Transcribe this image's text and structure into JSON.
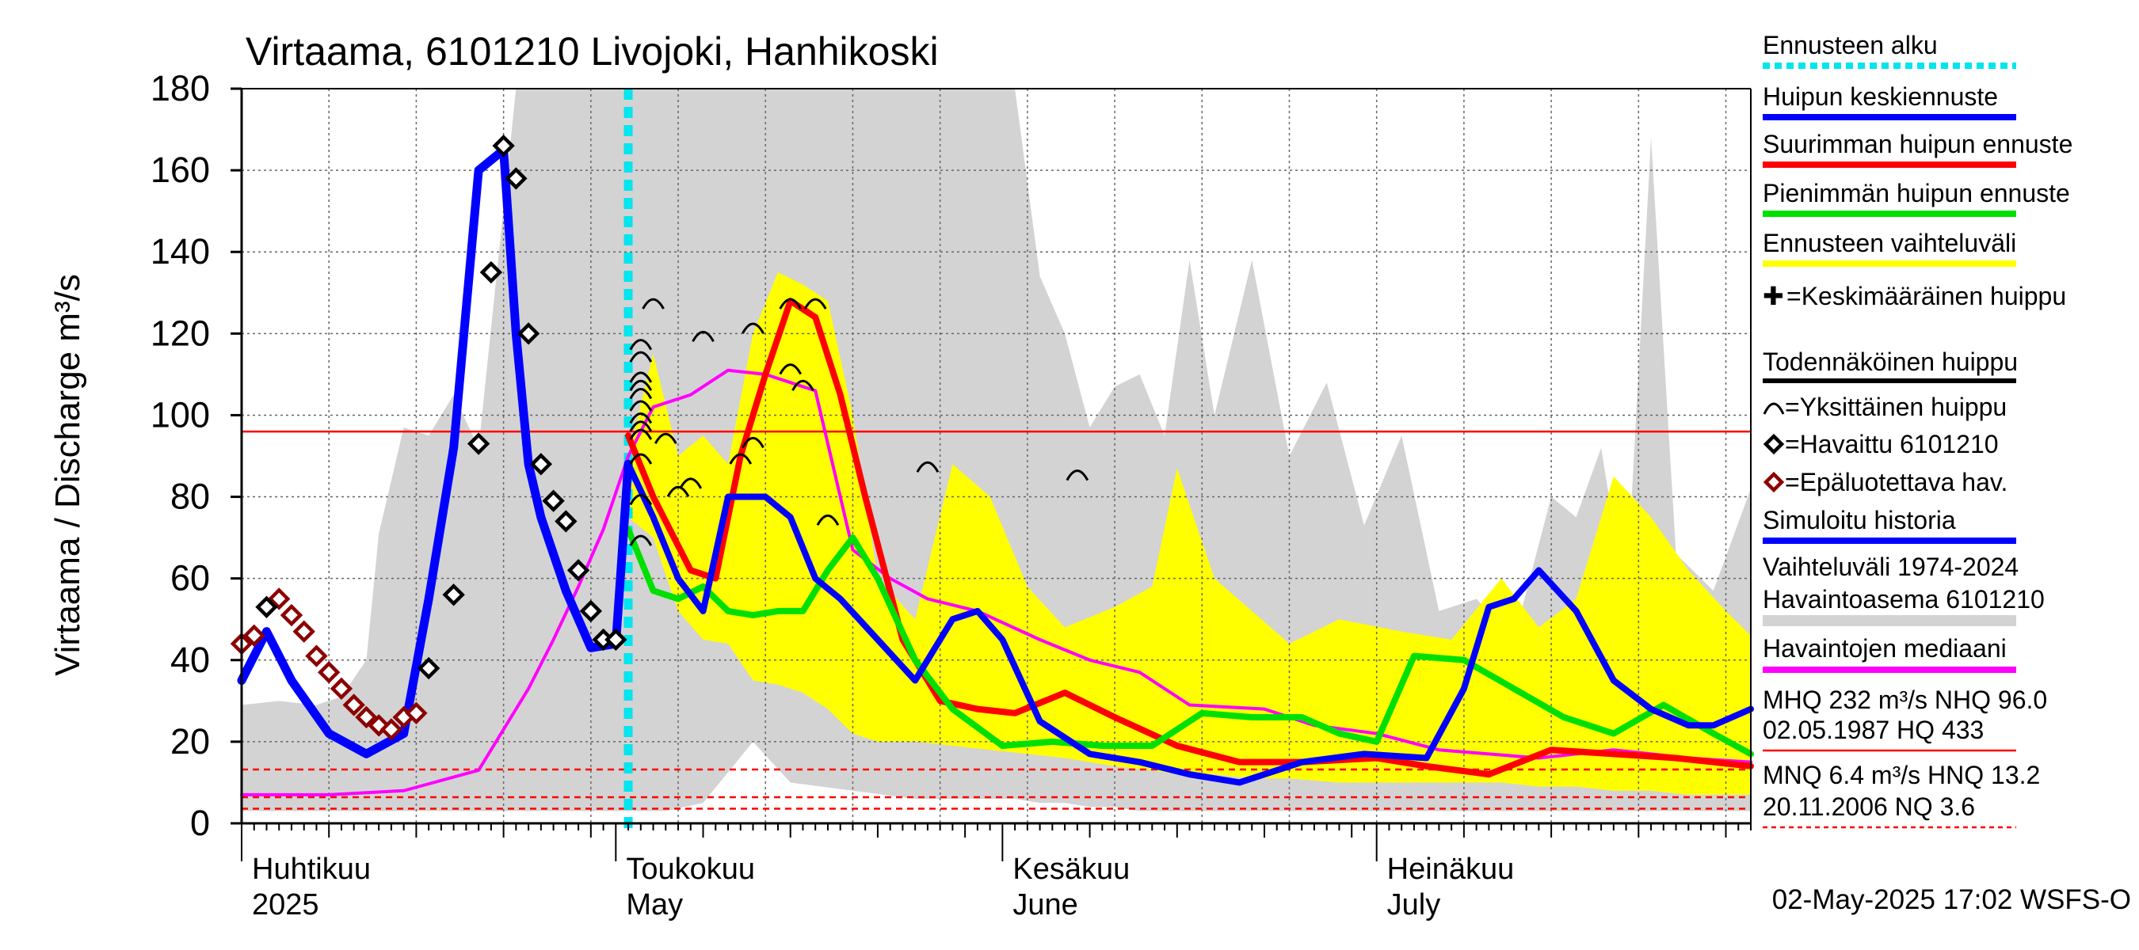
{
  "chart_data": {
    "type": "line",
    "title": "Virtaama, 6101210 Livojoki, Hanhikoski",
    "ylabel": "Virtaama / Discharge   m³/s",
    "ylim": [
      0,
      180
    ],
    "yticks": [
      0,
      20,
      40,
      60,
      80,
      100,
      120,
      140,
      160,
      180
    ],
    "xlim": [
      "2025-04-01",
      "2025-07-31"
    ],
    "x_month_labels": [
      {
        "date": "2025-04-01",
        "fi": "Huhtikuu",
        "en": "2025"
      },
      {
        "date": "2025-05-01",
        "fi": "Toukokuu",
        "en": "May"
      },
      {
        "date": "2025-06-01",
        "fi": "Kesäkuu",
        "en": "June"
      },
      {
        "date": "2025-07-01",
        "fi": "Heinäkuu",
        "en": "July"
      }
    ],
    "grid": true,
    "forecast_start": "2025-05-02",
    "reference_lines": {
      "red_solid": 96.0,
      "red_dashed": [
        13.2,
        6.4,
        3.6
      ]
    },
    "footer": "02-May-2025 17:02 WSFS-O",
    "legend": [
      {
        "label": "Ennusteen alku",
        "color": "#00e5ee",
        "style": "dotted"
      },
      {
        "label": "Huipun keskiennuste",
        "color": "#0000ff",
        "style": "line"
      },
      {
        "label": "Suurimman huipun ennuste",
        "color": "#ff0000",
        "style": "line"
      },
      {
        "label": "Pienimmän huipun ennuste",
        "color": "#00e000",
        "style": "line"
      },
      {
        "label": "Ennusteen vaihteluväli",
        "color": "#ffff00",
        "style": "line"
      },
      {
        "label": "✚=Keskimääräinen huippu",
        "color": "#000000",
        "style": "none"
      },
      {
        "label": "Todennäköinen huippu",
        "color": "#000000",
        "style": "line"
      },
      {
        "label": "⌒=Yksittäinen huippu",
        "color": "#000000",
        "style": "none"
      },
      {
        "label": "◇=Havaittu 6101210",
        "color": "#000000",
        "style": "none"
      },
      {
        "label": "◇=Epäluotettava hav.",
        "color": "#8b0000",
        "style": "none"
      },
      {
        "label": "Simuloitu historia",
        "color": "#0000ff",
        "style": "line"
      },
      {
        "label": "Vaihteluväli 1974-2024",
        "color": "#d3d3d3",
        "style": "none"
      },
      {
        "label": " Havaintoasema 6101210",
        "color": "#d3d3d3",
        "style": "band"
      },
      {
        "label": "Havaintojen mediaani",
        "color": "#ff00ff",
        "style": "line"
      },
      {
        "label": "MHQ  232 m³/s NHQ 96.0",
        "color": "#000000",
        "style": "none"
      },
      {
        "label": "02.05.1987 HQ  433",
        "color": "#ff0000",
        "style": "line"
      },
      {
        "label": "MNQ  6.4 m³/s HNQ 13.2",
        "color": "#000000",
        "style": "none"
      },
      {
        "label": "20.11.2006 NQ  3.6",
        "color": "#ff0000",
        "style": "dashed"
      }
    ],
    "series": [
      {
        "name": "Vaihteluväli 1974-2024",
        "kind": "band",
        "color": "#d3d3d3",
        "x": [
          "2025-04-01",
          "2025-04-04",
          "2025-04-07",
          "2025-04-09",
          "2025-04-11",
          "2025-04-12",
          "2025-04-14",
          "2025-04-16",
          "2025-04-18",
          "2025-04-20",
          "2025-04-23",
          "2025-04-25",
          "2025-04-28",
          "2025-05-01",
          "2025-05-03",
          "2025-05-05",
          "2025-05-08",
          "2025-05-12",
          "2025-05-15",
          "2025-05-20",
          "2025-05-25",
          "2025-05-30",
          "2025-06-02",
          "2025-06-04",
          "2025-06-06",
          "2025-06-08",
          "2025-06-10",
          "2025-06-12",
          "2025-06-14",
          "2025-06-16",
          "2025-06-18",
          "2025-06-21",
          "2025-06-24",
          "2025-06-27",
          "2025-06-30",
          "2025-07-03",
          "2025-07-06",
          "2025-07-09",
          "2025-07-12",
          "2025-07-15",
          "2025-07-17",
          "2025-07-19",
          "2025-07-21",
          "2025-07-23",
          "2025-07-25",
          "2025-07-28",
          "2025-07-31"
        ],
        "upper": [
          29,
          30,
          29,
          31,
          40,
          71,
          97,
          95,
          105,
          92,
          180,
          180,
          180,
          180,
          180,
          180,
          180,
          180,
          180,
          180,
          180,
          180,
          180,
          134,
          120,
          97,
          107,
          110,
          95,
          138,
          100,
          138,
          90,
          108,
          73,
          95,
          52,
          55,
          45,
          80,
          75,
          92,
          54,
          168,
          66,
          57,
          82
        ],
        "lower": [
          3,
          3,
          3,
          3,
          3,
          3,
          3,
          3,
          3,
          3,
          3,
          3,
          3,
          3,
          3,
          3,
          5,
          20,
          10,
          8,
          6,
          6,
          6,
          5,
          5,
          4,
          4,
          3,
          3,
          3,
          3,
          3,
          3,
          3,
          3,
          3,
          3,
          3,
          3,
          3,
          3,
          3,
          3,
          3,
          3,
          3,
          3
        ]
      },
      {
        "name": "Ennusteen vaihteluväli",
        "kind": "band",
        "color": "#ffff00",
        "x": [
          "2025-05-02",
          "2025-05-04",
          "2025-05-06",
          "2025-05-08",
          "2025-05-10",
          "2025-05-12",
          "2025-05-14",
          "2025-05-16",
          "2025-05-18",
          "2025-05-20",
          "2025-05-22",
          "2025-05-25",
          "2025-05-28",
          "2025-05-31",
          "2025-06-03",
          "2025-06-06",
          "2025-06-10",
          "2025-06-13",
          "2025-06-15",
          "2025-06-18",
          "2025-06-21",
          "2025-06-24",
          "2025-06-28",
          "2025-07-03",
          "2025-07-07",
          "2025-07-11",
          "2025-07-14",
          "2025-07-17",
          "2025-07-20",
          "2025-07-23",
          "2025-07-26",
          "2025-07-29",
          "2025-07-31"
        ],
        "upper": [
          90,
          115,
          90,
          95,
          88,
          120,
          135,
          132,
          128,
          100,
          60,
          50,
          88,
          80,
          58,
          48,
          53,
          58,
          87,
          60,
          52,
          44,
          50,
          47,
          45,
          60,
          48,
          55,
          85,
          75,
          62,
          52,
          46
        ],
        "lower": [
          75,
          70,
          52,
          45,
          44,
          35,
          34,
          32,
          28,
          22,
          20,
          20,
          19,
          18,
          17,
          16,
          14,
          13,
          12,
          12,
          11,
          11,
          10,
          10,
          10,
          10,
          9,
          9,
          8,
          8,
          7,
          7,
          7
        ]
      },
      {
        "name": "Havaintojen mediaani",
        "kind": "line",
        "color": "#ff00ff",
        "x": [
          "2025-04-01",
          "2025-04-08",
          "2025-04-14",
          "2025-04-20",
          "2025-04-24",
          "2025-04-26",
          "2025-04-28",
          "2025-04-30",
          "2025-05-02",
          "2025-05-04",
          "2025-05-07",
          "2025-05-10",
          "2025-05-13",
          "2025-05-17",
          "2025-05-20",
          "2025-05-23",
          "2025-05-26",
          "2025-05-30",
          "2025-06-04",
          "2025-06-08",
          "2025-06-12",
          "2025-06-16",
          "2025-06-22",
          "2025-06-26",
          "2025-07-01",
          "2025-07-06",
          "2025-07-10",
          "2025-07-14",
          "2025-07-20",
          "2025-07-26",
          "2025-07-31"
        ],
        "values": [
          7,
          7,
          8,
          13,
          33,
          45,
          58,
          72,
          90,
          102,
          105,
          111,
          110,
          106,
          67,
          60,
          55,
          52,
          45,
          40,
          37,
          29,
          28,
          24,
          22,
          18,
          17,
          16,
          18,
          16,
          15
        ]
      },
      {
        "name": "Suurimman huipun ennuste",
        "kind": "line",
        "color": "#ff0000",
        "x": [
          "2025-05-02",
          "2025-05-04",
          "2025-05-07",
          "2025-05-09",
          "2025-05-11",
          "2025-05-13",
          "2025-05-15",
          "2025-05-17",
          "2025-05-19",
          "2025-05-21",
          "2025-05-24",
          "2025-05-27",
          "2025-05-30",
          "2025-06-02",
          "2025-06-06",
          "2025-06-10",
          "2025-06-15",
          "2025-06-20",
          "2025-06-25",
          "2025-07-01",
          "2025-07-05",
          "2025-07-10",
          "2025-07-15",
          "2025-07-20",
          "2025-07-25",
          "2025-07-31"
        ],
        "values": [
          95,
          80,
          62,
          60,
          90,
          110,
          128,
          124,
          105,
          80,
          45,
          30,
          28,
          27,
          32,
          26,
          19,
          15,
          15,
          16,
          14,
          12,
          18,
          17,
          16,
          14
        ]
      },
      {
        "name": "Pienimmän huipun ennuste",
        "kind": "line",
        "color": "#00e000",
        "x": [
          "2025-05-02",
          "2025-05-04",
          "2025-05-06",
          "2025-05-08",
          "2025-05-10",
          "2025-05-12",
          "2025-05-14",
          "2025-05-16",
          "2025-05-18",
          "2025-05-20",
          "2025-05-22",
          "2025-05-25",
          "2025-05-28",
          "2025-06-01",
          "2025-06-05",
          "2025-06-09",
          "2025-06-13",
          "2025-06-17",
          "2025-06-21",
          "2025-06-25",
          "2025-06-28",
          "2025-07-01",
          "2025-07-04",
          "2025-07-08",
          "2025-07-12",
          "2025-07-16",
          "2025-07-20",
          "2025-07-24",
          "2025-07-28",
          "2025-07-31"
        ],
        "values": [
          72,
          57,
          55,
          58,
          52,
          51,
          52,
          52,
          62,
          70,
          60,
          40,
          28,
          19,
          20,
          19,
          19,
          27,
          26,
          26,
          22,
          20,
          41,
          40,
          33,
          26,
          22,
          29,
          22,
          17
        ]
      },
      {
        "name": "Huipun keskiennuste",
        "kind": "line",
        "color": "#0000ff",
        "x": [
          "2025-05-02",
          "2025-05-04",
          "2025-05-06",
          "2025-05-08",
          "2025-05-10",
          "2025-05-11",
          "2025-05-13",
          "2025-05-15",
          "2025-05-17",
          "2025-05-19",
          "2025-05-22",
          "2025-05-25",
          "2025-05-28",
          "2025-05-30",
          "2025-06-01",
          "2025-06-04",
          "2025-06-08",
          "2025-06-12",
          "2025-06-16",
          "2025-06-20",
          "2025-06-25",
          "2025-06-30",
          "2025-07-05",
          "2025-07-08",
          "2025-07-10",
          "2025-07-12",
          "2025-07-14",
          "2025-07-17",
          "2025-07-20",
          "2025-07-23",
          "2025-07-26",
          "2025-07-28",
          "2025-07-31"
        ],
        "values": [
          88,
          75,
          60,
          52,
          80,
          80,
          80,
          75,
          60,
          55,
          45,
          35,
          50,
          52,
          45,
          25,
          17,
          15,
          12,
          10,
          15,
          17,
          16,
          33,
          53,
          55,
          62,
          52,
          35,
          28,
          24,
          24,
          28
        ]
      },
      {
        "name": "Simuloitu historia",
        "kind": "line",
        "color": "#0000ff",
        "x": [
          "2025-04-01",
          "2025-04-03",
          "2025-04-05",
          "2025-04-08",
          "2025-04-11",
          "2025-04-14",
          "2025-04-16",
          "2025-04-18",
          "2025-04-20",
          "2025-04-22",
          "2025-04-23",
          "2025-04-24",
          "2025-04-25",
          "2025-04-27",
          "2025-04-29",
          "2025-05-01",
          "2025-05-02"
        ],
        "values": [
          35,
          47,
          35,
          22,
          17,
          22,
          55,
          92,
          160,
          165,
          120,
          88,
          75,
          57,
          43,
          44,
          88
        ]
      }
    ],
    "observed": {
      "x": [
        "2025-04-03",
        "2025-04-16",
        "2025-04-18",
        "2025-04-20",
        "2025-04-21",
        "2025-04-22",
        "2025-04-23",
        "2025-04-24",
        "2025-04-25",
        "2025-04-26",
        "2025-04-27",
        "2025-04-28",
        "2025-04-29",
        "2025-04-30",
        "2025-05-01"
      ],
      "values": [
        53,
        38,
        56,
        93,
        135,
        166,
        158,
        120,
        88,
        79,
        74,
        62,
        52,
        45,
        45
      ]
    },
    "unreliable": {
      "x": [
        "2025-04-01",
        "2025-04-02",
        "2025-04-04",
        "2025-04-05",
        "2025-04-06",
        "2025-04-07",
        "2025-04-08",
        "2025-04-09",
        "2025-04-10",
        "2025-04-11",
        "2025-04-12",
        "2025-04-13",
        "2025-04-14",
        "2025-04-15"
      ],
      "values": [
        44,
        46,
        55,
        51,
        47,
        41,
        37,
        33,
        29,
        26,
        24,
        23,
        26,
        27
      ]
    },
    "single_peaks": {
      "x": [
        "2025-05-03",
        "2025-05-03",
        "2025-05-03",
        "2025-05-03",
        "2025-05-03",
        "2025-05-03",
        "2025-05-03",
        "2025-05-03",
        "2025-05-03",
        "2025-05-04",
        "2025-05-05",
        "2025-05-06",
        "2025-05-07",
        "2025-05-08",
        "2025-05-11",
        "2025-05-12",
        "2025-05-12",
        "2025-05-15",
        "2025-05-15",
        "2025-05-16",
        "2025-05-17",
        "2025-05-18",
        "2025-05-26",
        "2025-06-07"
      ],
      "values": [
        118,
        115,
        110,
        108,
        106,
        103,
        100,
        98,
        96,
        128,
        95,
        82,
        84,
        120,
        90,
        94,
        122,
        128,
        112,
        108,
        128,
        75,
        88,
        86
      ]
    },
    "peak_min_band": [
      {
        "x": "2025-05-03",
        "y": 70
      },
      {
        "x": "2025-05-03",
        "y": 80
      },
      {
        "x": "2025-05-03",
        "y": 90
      }
    ]
  }
}
